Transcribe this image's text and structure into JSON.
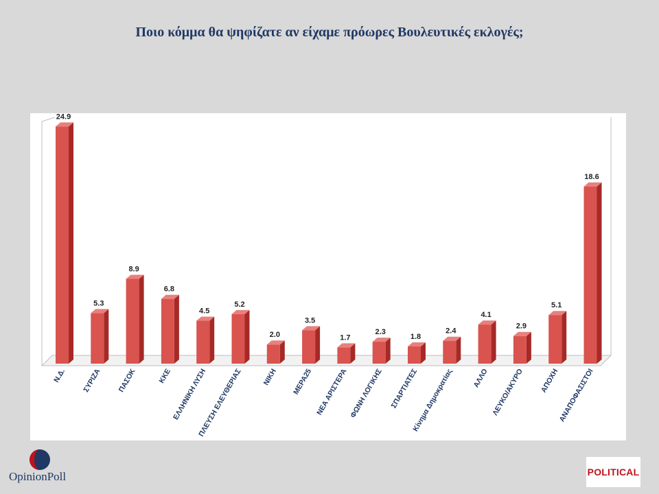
{
  "header": {
    "title": "Ποιο κόμμα θα ψηφίζατε αν είχαμε πρόωρες Βουλευτικές εκλογές;"
  },
  "chart_data": {
    "type": "bar",
    "title": "Ποιο κόμμα θα ψηφίζατε αν είχαμε πρόωρες Βουλευτικές εκλογές;",
    "categories": [
      "Ν.Δ.",
      "ΣΥΡΙΖΑ",
      "ΠΑΣΟΚ",
      "ΚΚΕ",
      "ΕΛΛΗΝΙΚΗ ΛΥΣΗ",
      "ΠΛΕΥΣΗ ΕΛΕΥΘΕΡΙΑΣ",
      "ΝΙΚΗ",
      "ΜΕΡΑ25",
      "ΝΕΑ ΑΡΙΣΤΕΡΑ",
      "ΦΩΝΗ ΛΟΓΙΚΗΣ",
      "ΣΠΑΡΤΙΑΤΕΣ",
      "Κίνημα Δημοκρατίας",
      "ΑΛΛΟ",
      "ΛΕΥΚΟ/ΑΚΥΡΟ",
      "ΑΠΟΧΗ",
      "ΑΝΑΠΟΦΑΣΙΣΤΟΙ"
    ],
    "values": [
      24.9,
      5.3,
      8.9,
      6.8,
      4.5,
      5.2,
      2.0,
      3.5,
      1.7,
      2.3,
      1.8,
      2.4,
      4.1,
      2.9,
      5.1,
      18.6
    ],
    "value_labels": [
      "24.9",
      "5.3",
      "8.9",
      "6.8",
      "4.5",
      "5.2",
      "2.0",
      "3.5",
      "1.7",
      "2.3",
      "1.8",
      "2.4",
      "4.1",
      "2.9",
      "5.1",
      "18.6"
    ],
    "ylim": [
      0,
      25
    ],
    "xlabel": "",
    "ylabel": "",
    "grid": false,
    "legend": "none",
    "style": "3d-column",
    "colors": {
      "bar_front": "#d9534f",
      "bar_side": "#a52a27",
      "bar_top": "#e8807d",
      "label": "#1f3864",
      "value": "#222222"
    }
  },
  "logos": {
    "left": "OpinionPoll",
    "right": "POLITICAL"
  }
}
